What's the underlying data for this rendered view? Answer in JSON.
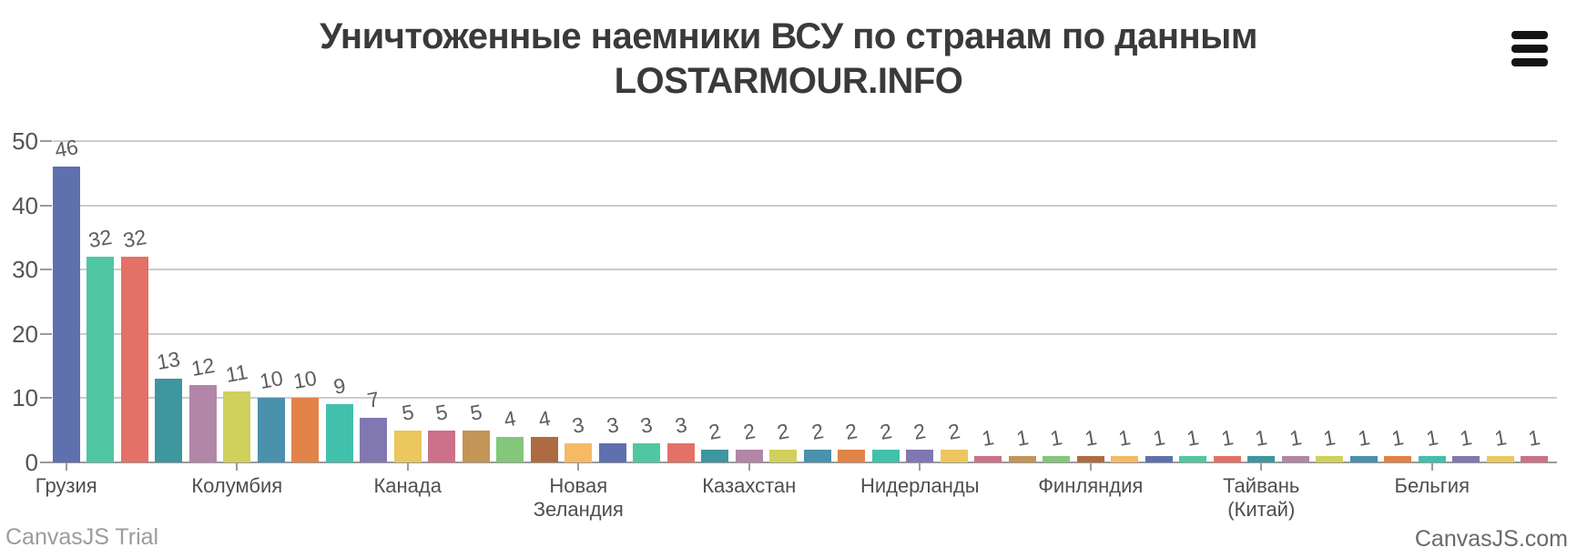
{
  "header": {
    "title_line1": "Уничтоженные наемники ВСУ по странам по данным",
    "title_line2": "LOSTARMOUR.INFO",
    "menu_icon": "hamburger-menu-icon"
  },
  "credits": {
    "trial": "CanvasJS Trial",
    "site": "CanvasJS.com"
  },
  "chart_data": {
    "type": "bar",
    "title": "Уничтоженные наемники ВСУ по странам по данным LOSTARMOUR.INFO",
    "ylim": [
      0,
      50
    ],
    "yticks": [
      0,
      10,
      20,
      30,
      40,
      50
    ],
    "grid": true,
    "legend": "none",
    "value_label_rotation_deg": -10,
    "values": [
      46,
      32,
      32,
      13,
      12,
      11,
      10,
      10,
      9,
      7,
      5,
      5,
      5,
      4,
      4,
      3,
      3,
      3,
      3,
      2,
      2,
      2,
      2,
      2,
      2,
      2,
      2,
      1,
      1,
      1,
      1,
      1,
      1,
      1,
      1,
      1,
      1,
      1,
      1,
      1,
      1,
      1,
      1,
      1
    ],
    "palette": [
      "#5E70AE",
      "#50C7A0",
      "#E37167",
      "#3E969E",
      "#B286A6",
      "#D0D05C",
      "#4A91AC",
      "#E28347",
      "#41C0AB",
      "#8278B1",
      "#EBC75D",
      "#CC7189",
      "#C39557",
      "#84C77B",
      "#AE6B42",
      "#F5BA63"
    ],
    "x_tick_labels": [
      {
        "index": 0,
        "label": "Грузия"
      },
      {
        "index": 5,
        "label": "Колумбия"
      },
      {
        "index": 10,
        "label": "Канада"
      },
      {
        "index": 15,
        "label": "Новая\nЗеландия"
      },
      {
        "index": 20,
        "label": "Казахстан"
      },
      {
        "index": 25,
        "label": "Нидерланды"
      },
      {
        "index": 30,
        "label": "Финляндия"
      },
      {
        "index": 35,
        "label": "Тайвань\n(Китай)"
      },
      {
        "index": 40,
        "label": "Бельгия"
      }
    ]
  }
}
